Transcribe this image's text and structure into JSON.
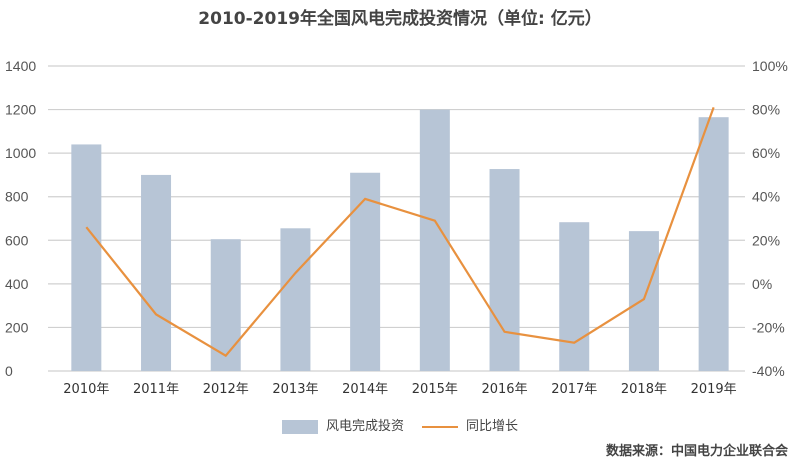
{
  "chart_data": {
    "type": "bar+line",
    "title": "2010-2019年全国风电完成投资情况（单位: 亿元）",
    "categories": [
      "2010年",
      "2011年",
      "2012年",
      "2013年",
      "2014年",
      "2015年",
      "2016年",
      "2017年",
      "2018年",
      "2019年"
    ],
    "series": [
      {
        "name": "风电完成投资",
        "type": "bar",
        "axis": "left",
        "color": "#b7c5d6",
        "values": [
          1040,
          900,
          605,
          655,
          910,
          1200,
          927,
          683,
          642,
          1165
        ]
      },
      {
        "name": "同比增长",
        "type": "line",
        "axis": "right",
        "color": "#e8913f",
        "values": [
          26,
          -14,
          -33,
          5,
          39,
          29,
          -22,
          -27,
          -7,
          81
        ]
      }
    ],
    "yleft": {
      "ylim": [
        0,
        1400
      ],
      "ticks": [
        0,
        200,
        400,
        600,
        800,
        1000,
        1200,
        1400
      ]
    },
    "yright": {
      "ylim": [
        -40,
        100
      ],
      "ticks": [
        "-40%",
        "-20%",
        "0%",
        "20%",
        "40%",
        "60%",
        "80%",
        "100%"
      ]
    },
    "grid": true,
    "legend": "bottom",
    "source": "数据来源：中国电力企业联合会"
  }
}
